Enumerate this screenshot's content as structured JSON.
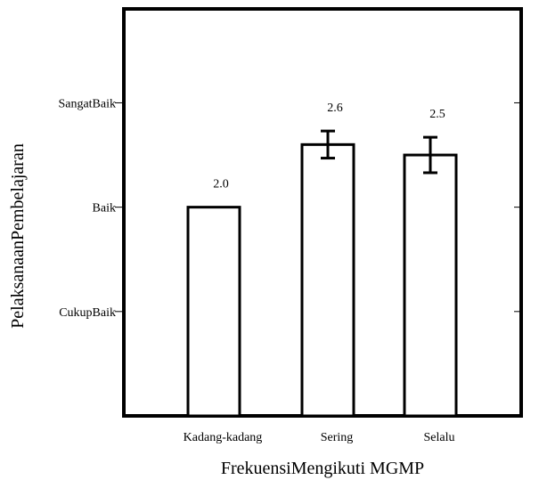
{
  "chart_data": {
    "type": "bar",
    "title": "",
    "xlabel": "FrekuensiMengikuti MGMP",
    "ylabel": "PelaksanaanPembelajaran",
    "categories": [
      "Kadang-kadang",
      "Sering",
      "Selalu"
    ],
    "values": [
      2.0,
      2.6,
      2.5
    ],
    "value_labels": [
      "2.0",
      "2.6",
      "2.5"
    ],
    "error": [
      0.0,
      0.13,
      0.17
    ],
    "ylim": [
      0,
      3.9
    ],
    "y_ticks": [
      {
        "value": 1,
        "label": "CukupBaik"
      },
      {
        "value": 2,
        "label": "Baik"
      },
      {
        "value": 3,
        "label": "SangatBaik"
      }
    ],
    "grid": false,
    "legend": "none",
    "bar_fill": "#ffffff",
    "stroke_color": "#000000"
  }
}
